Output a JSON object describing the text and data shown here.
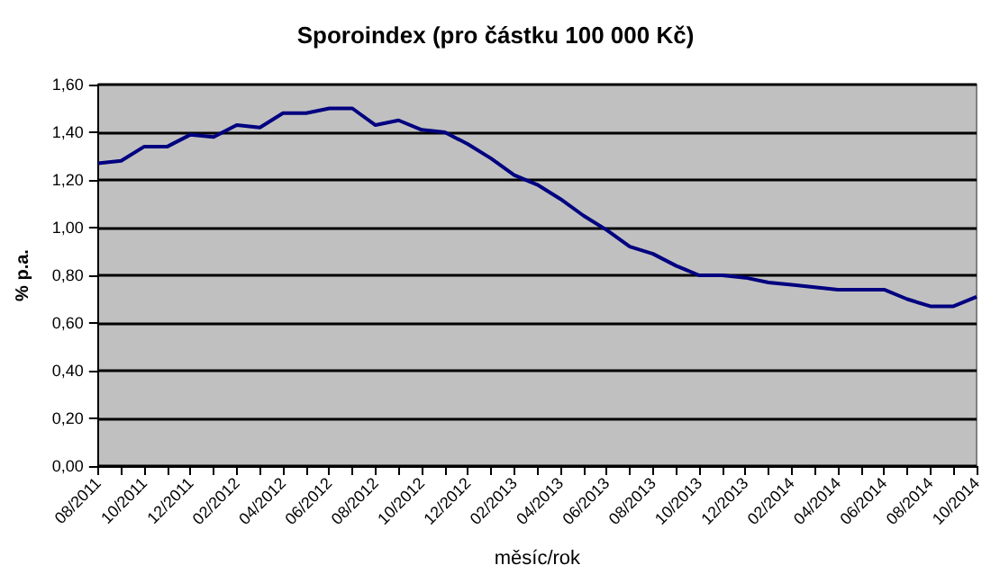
{
  "chart_data": {
    "type": "line",
    "title": "Sporoindex (pro částku 100 000 Kč)",
    "xlabel": "měsíc/rok",
    "ylabel": "% p.a.",
    "categories": [
      "08/2011",
      null,
      "10/2011",
      null,
      "12/2011",
      null,
      "02/2012",
      null,
      "04/2012",
      null,
      "06/2012",
      null,
      "08/2012",
      null,
      "10/2012",
      null,
      "12/2012",
      null,
      "02/2013",
      null,
      "04/2013",
      null,
      "06/2013",
      null,
      "08/2013",
      null,
      "10/2013",
      null,
      "12/2013",
      null,
      "02/2014",
      null,
      "04/2014",
      null,
      "06/2014",
      null,
      "08/2014",
      null,
      "10/2014"
    ],
    "series": [
      {
        "color": "#000080",
        "values": [
          1.27,
          1.28,
          1.34,
          1.34,
          1.39,
          1.38,
          1.43,
          1.42,
          1.48,
          1.48,
          1.5,
          1.5,
          1.43,
          1.45,
          1.41,
          1.4,
          1.35,
          1.29,
          1.22,
          1.18,
          1.12,
          1.05,
          0.99,
          0.92,
          0.89,
          0.84,
          0.8,
          0.8,
          0.79,
          0.77,
          0.76,
          0.75,
          0.74,
          0.74,
          0.74,
          0.7,
          0.67,
          0.67,
          0.71
        ]
      }
    ],
    "ylim": [
      0,
      1.6
    ],
    "yticks": [
      {
        "value": 0,
        "label": "0,00"
      },
      {
        "value": 0.2,
        "label": "0,20"
      },
      {
        "value": 0.4,
        "label": "0,40"
      },
      {
        "value": 0.6,
        "label": "0,60"
      },
      {
        "value": 0.8,
        "label": "0,80"
      },
      {
        "value": 1.0,
        "label": "1,00"
      },
      {
        "value": 1.2,
        "label": "1,20"
      },
      {
        "value": 1.4,
        "label": "1,40"
      },
      {
        "value": 1.6,
        "label": "1,60"
      }
    ],
    "grid": "y",
    "marker": "none",
    "line_style": "solid"
  }
}
